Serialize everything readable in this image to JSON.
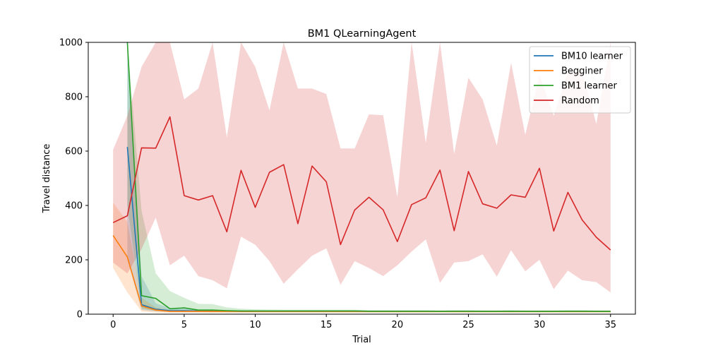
{
  "chart_data": {
    "type": "line",
    "title": "BM1  QLearningAgent",
    "xlabel": "Trial",
    "ylabel": "Travel distance",
    "xlim": [
      -1.75,
      36.75
    ],
    "ylim": [
      0,
      1000
    ],
    "xticks": [
      0,
      5,
      10,
      15,
      20,
      25,
      30,
      35
    ],
    "yticks": [
      0,
      200,
      400,
      600,
      800,
      1000
    ],
    "grid": false,
    "legend_position": "top-right",
    "series": [
      {
        "name": "BM10 learner",
        "color": "#1f77b4",
        "x": [
          1,
          2,
          3,
          4,
          5,
          6,
          7,
          8,
          9,
          10,
          11,
          12,
          13,
          14,
          15,
          16,
          17,
          18,
          19,
          20,
          21,
          22,
          23,
          24,
          25,
          26,
          27,
          28,
          29,
          30,
          31,
          32,
          33,
          34,
          35
        ],
        "y": [
          615,
          35,
          18,
          13,
          13,
          12,
          11,
          11,
          10,
          10,
          10,
          10,
          10,
          10,
          10,
          10,
          10,
          10,
          10,
          10,
          10,
          10,
          10,
          10,
          10,
          10,
          10,
          10,
          10,
          10,
          10,
          10,
          10,
          10,
          10
        ],
        "band_low": [
          200,
          15,
          10,
          8,
          8,
          8,
          8,
          8,
          8,
          8,
          8,
          8,
          8,
          8,
          8,
          8,
          8,
          8,
          8,
          8,
          8,
          8,
          8,
          8,
          8,
          8,
          8,
          8,
          8,
          8,
          8,
          8,
          8,
          8,
          8
        ],
        "band_high": [
          1000,
          140,
          40,
          22,
          20,
          17,
          15,
          14,
          13,
          13,
          13,
          13,
          13,
          13,
          13,
          13,
          13,
          13,
          13,
          13,
          13,
          13,
          13,
          13,
          13,
          13,
          13,
          13,
          13,
          13,
          13,
          13,
          13,
          13,
          13
        ]
      },
      {
        "name": "Begginer",
        "color": "#ff7f0e",
        "x": [
          0,
          1,
          2,
          3,
          4,
          5,
          6,
          7,
          8,
          9,
          10,
          11,
          12,
          13,
          14,
          15,
          16,
          17,
          18,
          19,
          20,
          21,
          22,
          23,
          24,
          25,
          26,
          27,
          28,
          29,
          30,
          31,
          32,
          33,
          34,
          35
        ],
        "y": [
          290,
          210,
          30,
          15,
          10,
          10,
          10,
          10,
          10,
          10,
          10,
          10,
          10,
          10,
          10,
          10,
          10,
          10,
          10,
          10,
          10,
          10,
          10,
          10,
          10,
          10,
          10,
          10,
          10,
          10,
          10,
          10,
          10,
          10,
          10,
          10
        ],
        "band_low": [
          170,
          80,
          10,
          6,
          5,
          5,
          5,
          5,
          5,
          5,
          5,
          5,
          5,
          5,
          5,
          5,
          5,
          5,
          5,
          5,
          5,
          5,
          5,
          5,
          5,
          5,
          5,
          5,
          5,
          5,
          5,
          5,
          5,
          5,
          5,
          5
        ],
        "band_high": [
          410,
          340,
          60,
          25,
          15,
          14,
          13,
          13,
          13,
          13,
          13,
          13,
          13,
          13,
          13,
          13,
          13,
          13,
          13,
          13,
          13,
          13,
          13,
          13,
          13,
          13,
          13,
          13,
          13,
          13,
          13,
          13,
          13,
          13,
          13,
          13
        ]
      },
      {
        "name": "BM1 learner",
        "color": "#2ca02c",
        "x": [
          1,
          2,
          3,
          4,
          5,
          6,
          7,
          8,
          9,
          10,
          11,
          12,
          13,
          14,
          15,
          16,
          17,
          18,
          19,
          20,
          21,
          22,
          23,
          24,
          25,
          26,
          27,
          28,
          29,
          30,
          31,
          32,
          33,
          34,
          35
        ],
        "y": [
          1000,
          68,
          58,
          20,
          23,
          15,
          15,
          13,
          12,
          12,
          12,
          12,
          12,
          12,
          12,
          12,
          12,
          11,
          11,
          11,
          11,
          11,
          10,
          11,
          11,
          10,
          10,
          11,
          10,
          10,
          10,
          11,
          11,
          10,
          10
        ],
        "band_low": [
          400,
          20,
          12,
          8,
          8,
          8,
          7,
          7,
          7,
          7,
          7,
          7,
          7,
          7,
          7,
          7,
          7,
          7,
          7,
          7,
          7,
          7,
          7,
          7,
          7,
          7,
          7,
          7,
          7,
          7,
          7,
          7,
          7,
          7,
          7
        ],
        "band_high": [
          1000,
          380,
          150,
          85,
          60,
          38,
          37,
          25,
          20,
          18,
          17,
          16,
          16,
          16,
          16,
          16,
          16,
          15,
          15,
          15,
          15,
          15,
          14,
          15,
          15,
          14,
          14,
          15,
          14,
          14,
          14,
          15,
          15,
          14,
          14
        ]
      },
      {
        "name": "Random",
        "color": "#d62728",
        "x": [
          0,
          1,
          2,
          3,
          4,
          5,
          6,
          7,
          8,
          9,
          10,
          11,
          12,
          13,
          14,
          15,
          16,
          17,
          18,
          19,
          20,
          21,
          22,
          23,
          24,
          25,
          26,
          27,
          28,
          29,
          30,
          31,
          32,
          33,
          34,
          35
        ],
        "y": [
          337,
          362,
          612,
          611,
          726,
          436,
          420,
          436,
          303,
          529,
          393,
          522,
          550,
          333,
          545,
          487,
          256,
          383,
          430,
          384,
          267,
          403,
          428,
          530,
          307,
          525,
          406,
          390,
          439,
          430,
          537,
          306,
          448,
          347,
          283,
          236
        ],
        "band_low": [
          190,
          150,
          240,
          355,
          180,
          215,
          140,
          125,
          95,
          285,
          255,
          195,
          112,
          165,
          215,
          242,
          108,
          195,
          170,
          140,
          180,
          230,
          275,
          115,
          190,
          195,
          220,
          138,
          235,
          158,
          200,
          92,
          160,
          125,
          118,
          80
        ],
        "band_high": [
          605,
          730,
          910,
          1000,
          1000,
          790,
          830,
          1000,
          650,
          1000,
          910,
          750,
          1000,
          830,
          830,
          810,
          610,
          610,
          735,
          732,
          430,
          1000,
          630,
          1000,
          590,
          870,
          790,
          620,
          925,
          660,
          880,
          730,
          890,
          900,
          700,
          1000
        ]
      }
    ]
  }
}
